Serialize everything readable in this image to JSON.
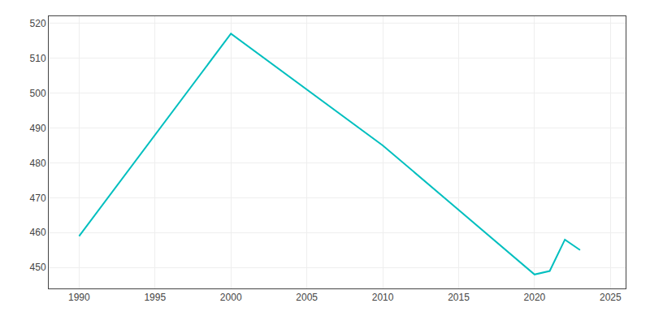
{
  "chart_data": {
    "type": "line",
    "x": [
      1990,
      2000,
      2010,
      2020,
      2021,
      2022,
      2023
    ],
    "values": [
      459,
      517,
      485,
      448,
      449,
      458,
      455
    ],
    "color": "#00BFBF",
    "xlim": [
      1988,
      2026
    ],
    "ylim": [
      444,
      522
    ],
    "xticks": [
      1990,
      1995,
      2000,
      2005,
      2010,
      2015,
      2020,
      2025
    ],
    "yticks": [
      450,
      460,
      470,
      480,
      490,
      500,
      510,
      520
    ],
    "grid": true
  }
}
